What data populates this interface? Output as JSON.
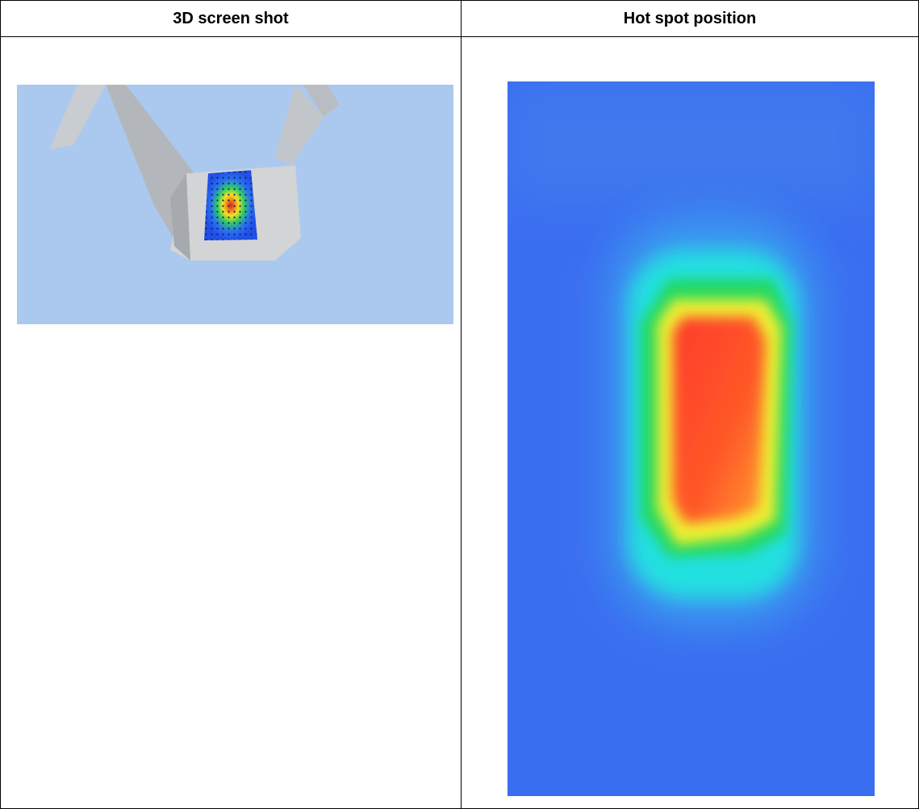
{
  "table": {
    "headers": [
      "3D screen shot",
      "Hot spot position"
    ]
  }
}
